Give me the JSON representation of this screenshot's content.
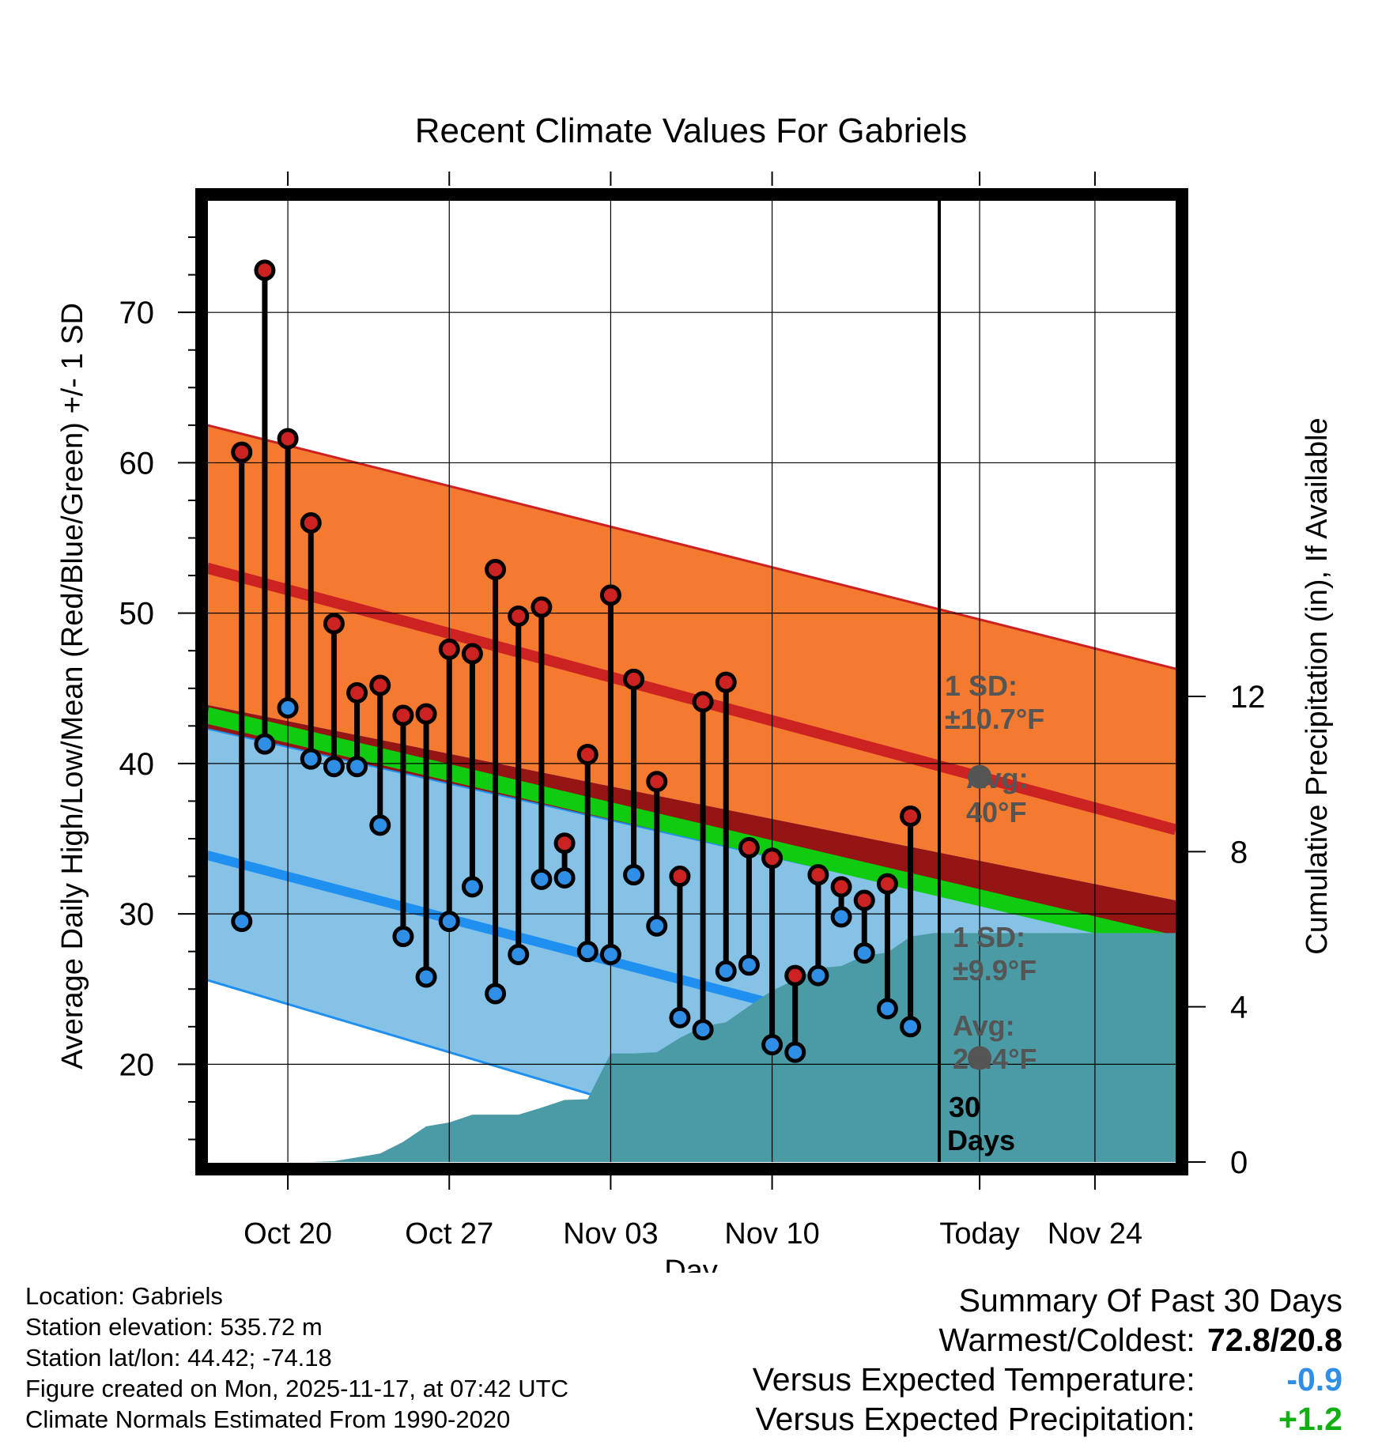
{
  "chart_data": {
    "type": "line",
    "title": "Recent Climate Values For Gabriels",
    "xlabel": "Day",
    "ylabel": "Average Daily High/Low/Mean (Red/Blue/Green) +/- 1 SD",
    "ylabel_right": "Cumulative Precipitation (in), If Available",
    "ylim": [
      13.5,
      78
    ],
    "ylim_right": [
      0,
      25
    ],
    "xlim": [
      -3.5,
      38.5
    ],
    "today_index": 30,
    "x_ticks": [
      {
        "day": 0,
        "label": "Oct 20"
      },
      {
        "day": 7,
        "label": "Oct 27"
      },
      {
        "day": 14,
        "label": "Nov 03"
      },
      {
        "day": 21,
        "label": "Nov 10"
      },
      {
        "day": 30,
        "label": "Today"
      },
      {
        "day": 35,
        "label": "Nov 24"
      }
    ],
    "y_ticks": [
      20,
      30,
      40,
      50,
      60,
      70
    ],
    "y_ticks_right": [
      0,
      4,
      8,
      12
    ],
    "normals": {
      "high_mean": [
        53.0,
        35.6
      ],
      "high_plus_sd": [
        62.5,
        46.3
      ],
      "high_minus_sd": [
        43.9,
        30.9
      ],
      "low_mean": [
        33.9,
        17.0
      ],
      "low_plus_sd": [
        42.3,
        27.7
      ],
      "low_minus_sd": [
        25.6,
        6.4
      ],
      "mean_line": [
        43.2,
        28.0
      ]
    },
    "series": [
      {
        "name": "Daily High",
        "color": "#cc2222",
        "values": [
          60.7,
          72.8,
          61.6,
          56.0,
          49.3,
          44.7,
          45.2,
          43.2,
          43.3,
          47.6,
          47.3,
          52.9,
          49.8,
          50.4,
          34.7,
          40.6,
          51.2,
          45.6,
          38.8,
          32.5,
          44.1,
          45.4,
          34.4,
          33.7,
          25.9,
          32.6,
          31.8,
          30.9,
          32.0,
          36.5
        ]
      },
      {
        "name": "Daily Low",
        "color": "#2f8ee5",
        "values": [
          29.5,
          41.3,
          43.7,
          40.3,
          39.8,
          39.8,
          35.9,
          28.5,
          25.8,
          29.5,
          31.8,
          24.7,
          27.3,
          32.3,
          32.4,
          27.5,
          27.3,
          32.6,
          29.2,
          23.1,
          22.3,
          26.2,
          26.6,
          21.3,
          20.8,
          25.9,
          29.8,
          27.4,
          23.7,
          22.5
        ]
      },
      {
        "name": "Cumulative Precipitation",
        "color": "#4a9ba6",
        "values": [
          0.0,
          0.0,
          0.0,
          0.02,
          0.12,
          0.22,
          0.52,
          0.92,
          1.02,
          1.22,
          1.22,
          1.22,
          1.4,
          1.6,
          1.62,
          2.8,
          2.8,
          2.83,
          3.2,
          3.5,
          3.6,
          4.02,
          4.42,
          4.7,
          5.0,
          5.05,
          5.32,
          5.4,
          5.81,
          5.9,
          5.9,
          5.9
        ]
      }
    ],
    "annotations": {
      "high_sd": "1 SD:",
      "high_sd_value": "±10.7°F",
      "high_avg": "Avg:",
      "high_avg_value": "40°F",
      "low_sd": "1 SD:",
      "low_sd_value": "±9.9°F",
      "low_avg": "Avg:",
      "low_avg_value": "23.4°F",
      "period_count": "30",
      "period_unit": "Days"
    },
    "colors": {
      "high_band": "#f47a30",
      "high_line": "#cc2222",
      "overlap_band": "#951414",
      "low_band": "#85c2e6",
      "low_line": "#1f8ff0",
      "mean_band": "#10cc10",
      "precip_fill": "#4a9ba6",
      "annotation_text": "#555555",
      "avg_dot": "#555555"
    }
  },
  "info": {
    "location": "Location: Gabriels",
    "elevation": "Station elevation: 535.72 m",
    "latlon": "Station lat/lon: 44.42; -74.18",
    "created": "Figure created on Mon, 2025-11-17, at 07:42 UTC",
    "normals": "Climate Normals Estimated From 1990-2020"
  },
  "summary": {
    "heading": "Summary Of Past 30 Days",
    "warm_cold_label": "Warmest/Coldest:",
    "warm_cold_value": "72.8/20.8",
    "temp_label": "Versus Expected Temperature:",
    "temp_value": "-0.9",
    "temp_color": "#2f8ee5",
    "precip_label": "Versus Expected Precipitation:",
    "precip_value": "+1.2",
    "precip_color": "#10b010"
  }
}
